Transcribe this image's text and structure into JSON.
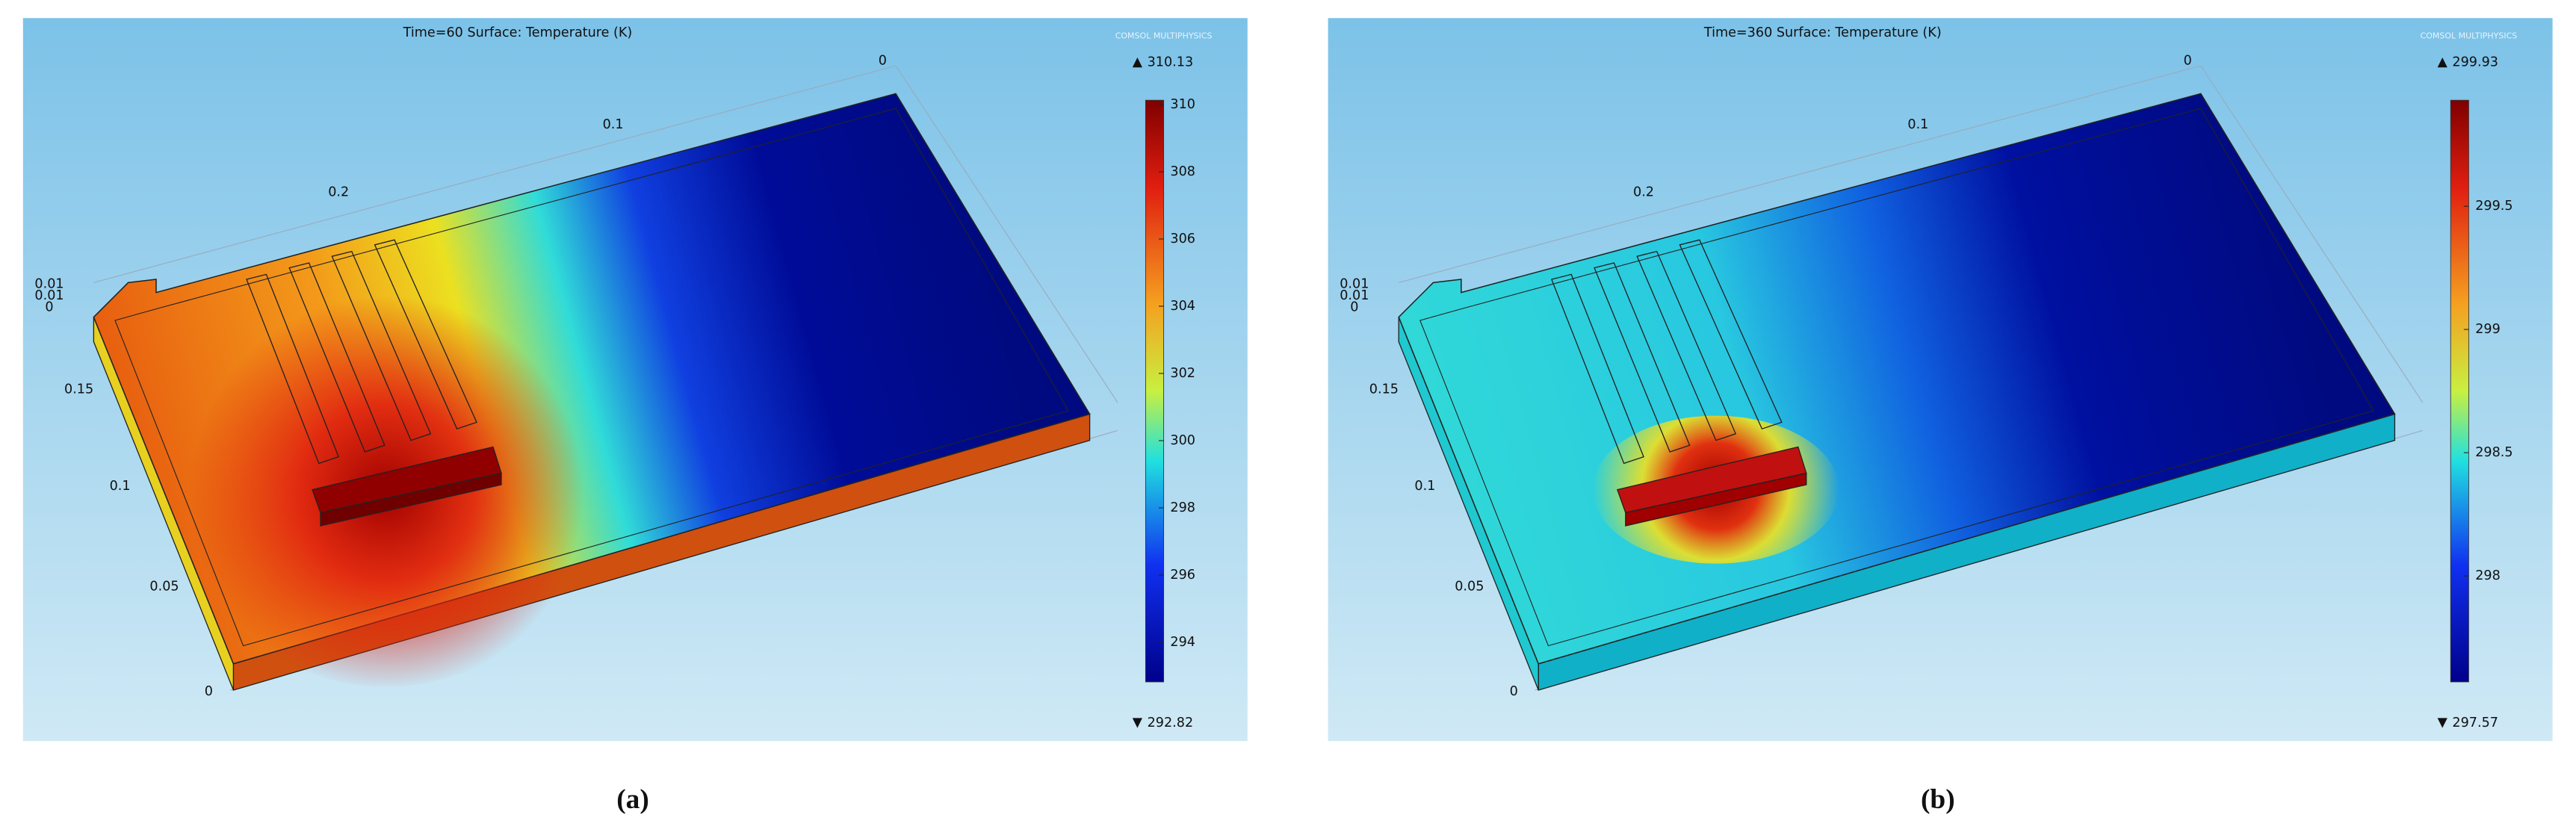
{
  "panels": [
    {
      "title": "Time=60  Surface: Temperature (K)",
      "logo": "COMSOL MULTIPHYSICS",
      "max": 310.13,
      "min": 292.82,
      "colorbar_ticks": [
        310,
        308,
        306,
        304,
        302,
        300,
        298,
        296,
        294
      ],
      "axis_labels": [
        "0",
        "0.1",
        "0.2",
        "0.01",
        "0.01",
        "0",
        "0.15",
        "0.1",
        "0.05",
        "0"
      ],
      "caption": "(a)"
    },
    {
      "title": "Time=360  Surface: Temperature (K)",
      "logo": "COMSOL MULTIPHYSICS",
      "max": 299.93,
      "min": 297.57,
      "colorbar_ticks": [
        299.5,
        299,
        298.5,
        298
      ],
      "axis_labels": [
        "0",
        "0.1",
        "0.2",
        "0.01",
        "0.01",
        "0",
        "0.15",
        "0.1",
        "0.05",
        "0"
      ],
      "caption": "(b)"
    }
  ]
}
